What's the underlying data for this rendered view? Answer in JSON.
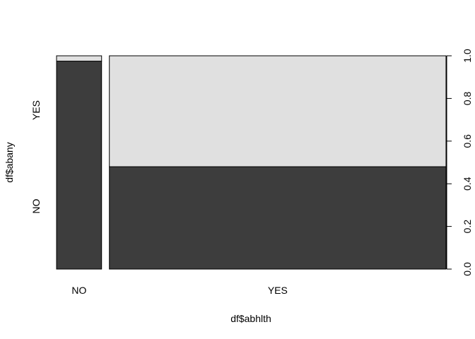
{
  "chart_data": {
    "type": "mosaic",
    "xlabel": "df$abhlth",
    "ylabel": "df$abany",
    "x_categories": [
      {
        "label": "NO",
        "width_share": 0.118
      },
      {
        "label": "YES",
        "width_share": 0.882
      }
    ],
    "y_categories": [
      {
        "label": "NO",
        "bottom": true
      },
      {
        "label": "YES",
        "bottom": false
      }
    ],
    "values": [
      {
        "x": "NO",
        "y_NO_fraction": 0.975,
        "y_YES_fraction": 0.025
      },
      {
        "x": "YES",
        "y_NO_fraction": 0.48,
        "y_YES_fraction": 0.52
      }
    ],
    "right_axis": {
      "ticks": [
        "0.0",
        "0.2",
        "0.4",
        "0.6",
        "0.8",
        "1.0"
      ],
      "ylim": [
        0,
        1
      ]
    },
    "colors": {
      "NO": "#3d3d3d",
      "YES": "#e0e0e0",
      "outline": "#000000"
    }
  }
}
